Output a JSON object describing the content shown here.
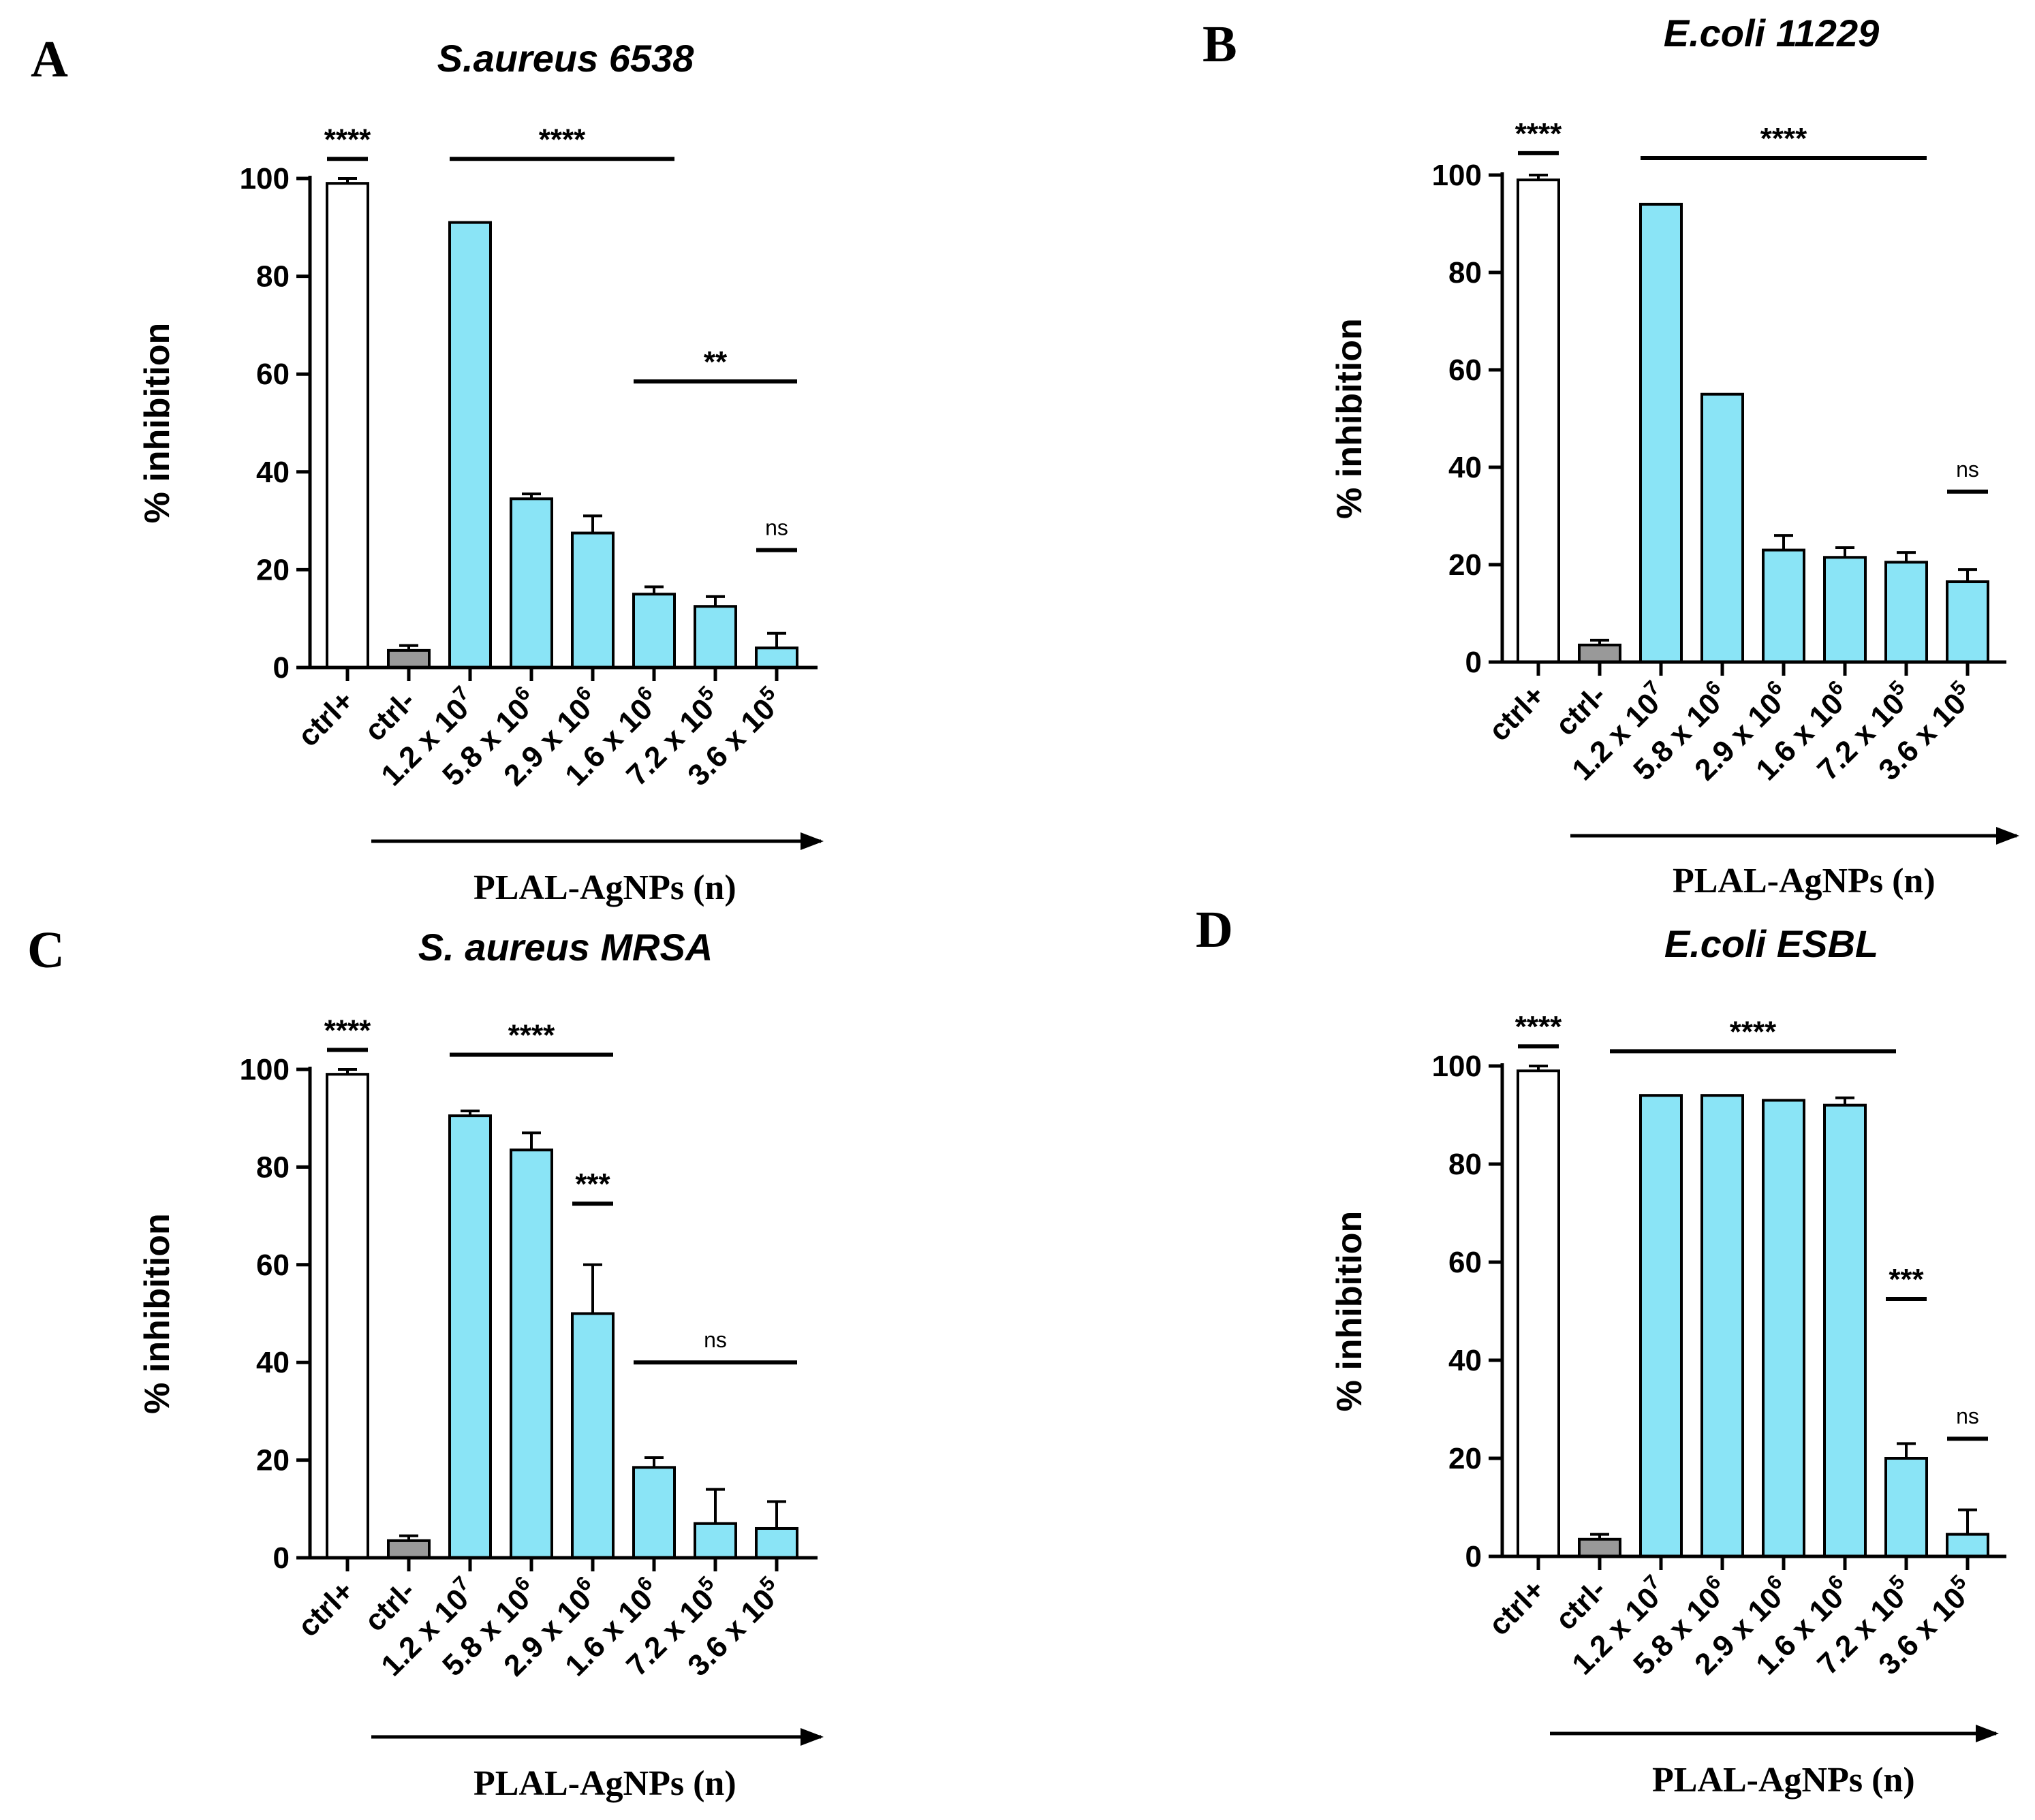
{
  "chart_data": [
    {
      "type": "bar",
      "panel": "A",
      "title": "S.aureus 6538",
      "ylabel": "% inhibition",
      "xlabel": "PLAL-AgNPs (n)",
      "ylim": [
        0,
        100
      ],
      "yticks": [
        "0",
        "20",
        "40",
        "60",
        "80",
        "100"
      ],
      "categories": [
        {
          "base": "ctrl+",
          "exp": ""
        },
        {
          "base": "ctrl-",
          "exp": ""
        },
        {
          "base": "1.2 x 10",
          "exp": "7"
        },
        {
          "base": "5.8 x 10",
          "exp": "6"
        },
        {
          "base": "2.9 x 10",
          "exp": "6"
        },
        {
          "base": "1.6 x 10",
          "exp": "6"
        },
        {
          "base": "7.2 x 10",
          "exp": "5"
        },
        {
          "base": "3.6 x 10",
          "exp": "5"
        }
      ],
      "values": [
        99,
        3.5,
        91,
        34.5,
        27.5,
        15,
        12.5,
        4
      ],
      "errors": [
        1,
        1,
        0,
        1,
        3.5,
        1.5,
        2,
        3
      ],
      "colors": [
        "#ffffff",
        "#999999",
        "#8ae4f6",
        "#8ae4f6",
        "#8ae4f6",
        "#8ae4f6",
        "#8ae4f6",
        "#8ae4f6"
      ],
      "significance": [
        {
          "label": "****",
          "from": 0,
          "to": 0,
          "y": 104
        },
        {
          "label": "****",
          "from": 2,
          "to": 5,
          "y": 104
        },
        {
          "label": "**",
          "from": 5,
          "to": 7,
          "y": 58.5
        },
        {
          "label": "ns",
          "from": 7,
          "to": 7,
          "y": 24
        }
      ]
    },
    {
      "type": "bar",
      "panel": "B",
      "title": "E.coli 11229",
      "ylabel": "% inhibition",
      "xlabel": "PLAL-AgNPs (n)",
      "ylim": [
        0,
        100
      ],
      "yticks": [
        "0",
        "20",
        "40",
        "60",
        "80",
        "100"
      ],
      "categories": [
        {
          "base": "ctrl+",
          "exp": ""
        },
        {
          "base": "ctrl-",
          "exp": ""
        },
        {
          "base": "1.2 x 10",
          "exp": "7"
        },
        {
          "base": "5.8 x 10",
          "exp": "6"
        },
        {
          "base": "2.9 x 10",
          "exp": "6"
        },
        {
          "base": "1.6 x 10",
          "exp": "6"
        },
        {
          "base": "7.2 x 10",
          "exp": "5"
        },
        {
          "base": "3.6 x 10",
          "exp": "5"
        }
      ],
      "values": [
        99,
        3.5,
        94,
        55,
        23,
        21.5,
        20.5,
        16.5
      ],
      "errors": [
        1,
        1,
        0,
        0,
        3,
        2,
        2,
        2.5
      ],
      "colors": [
        "#ffffff",
        "#999999",
        "#8ae4f6",
        "#8ae4f6",
        "#8ae4f6",
        "#8ae4f6",
        "#8ae4f6",
        "#8ae4f6"
      ],
      "significance": [
        {
          "label": "****",
          "from": 0,
          "to": 0,
          "y": 104.5
        },
        {
          "label": "****",
          "from": 2,
          "to": 6,
          "y": 103.5
        },
        {
          "label": "ns",
          "from": 7,
          "to": 7,
          "y": 35
        }
      ]
    },
    {
      "type": "bar",
      "panel": "C",
      "title": "S. aureus MRSA",
      "ylabel": "% inhibition",
      "xlabel": "PLAL-AgNPs (n)",
      "ylim": [
        0,
        100
      ],
      "yticks": [
        "0",
        "20",
        "40",
        "60",
        "80",
        "100"
      ],
      "categories": [
        {
          "base": "ctrl+",
          "exp": ""
        },
        {
          "base": "ctrl-",
          "exp": ""
        },
        {
          "base": "1.2 x 10",
          "exp": "7"
        },
        {
          "base": "5.8 x 10",
          "exp": "6"
        },
        {
          "base": "2.9 x 10",
          "exp": "6"
        },
        {
          "base": "1.6 x 10",
          "exp": "6"
        },
        {
          "base": "7.2 x 10",
          "exp": "5"
        },
        {
          "base": "3.6 x 10",
          "exp": "5"
        }
      ],
      "values": [
        99,
        3.5,
        90.5,
        83.5,
        50,
        18.5,
        7,
        6
      ],
      "errors": [
        1,
        1,
        1,
        3.5,
        10,
        2,
        7,
        5.5
      ],
      "colors": [
        "#ffffff",
        "#999999",
        "#8ae4f6",
        "#8ae4f6",
        "#8ae4f6",
        "#8ae4f6",
        "#8ae4f6",
        "#8ae4f6"
      ],
      "significance": [
        {
          "label": "****",
          "from": 0,
          "to": 0,
          "y": 104
        },
        {
          "label": "****",
          "from": 2,
          "to": 4,
          "y": 103
        },
        {
          "label": "***",
          "from": 4,
          "to": 4,
          "y": 72.5
        },
        {
          "label": "ns",
          "from": 5,
          "to": 7,
          "y": 40
        }
      ]
    },
    {
      "type": "bar",
      "panel": "D",
      "title": "E.coli ESBL",
      "ylabel": "% inhibition",
      "xlabel": "PLAL-AgNPs (n)",
      "ylim": [
        0,
        100
      ],
      "yticks": [
        "0",
        "20",
        "40",
        "60",
        "80",
        "100"
      ],
      "categories": [
        {
          "base": "ctrl+",
          "exp": ""
        },
        {
          "base": "ctrl-",
          "exp": ""
        },
        {
          "base": "1.2 x 10",
          "exp": "7"
        },
        {
          "base": "5.8 x 10",
          "exp": "6"
        },
        {
          "base": "2.9 x 10",
          "exp": "6"
        },
        {
          "base": "1.6 x 10",
          "exp": "6"
        },
        {
          "base": "7.2 x 10",
          "exp": "5"
        },
        {
          "base": "3.6 x 10",
          "exp": "5"
        }
      ],
      "values": [
        99,
        3.5,
        94,
        94,
        93,
        92,
        20,
        4.5
      ],
      "errors": [
        1,
        1,
        0,
        0,
        0,
        1.5,
        3,
        5
      ],
      "colors": [
        "#ffffff",
        "#999999",
        "#8ae4f6",
        "#8ae4f6",
        "#8ae4f6",
        "#8ae4f6",
        "#8ae4f6",
        "#8ae4f6"
      ],
      "significance": [
        {
          "label": "****",
          "from": 0,
          "to": 0,
          "y": 104
        },
        {
          "label": "****",
          "from": 1.5,
          "to": 5.5,
          "y": 103
        },
        {
          "label": "***",
          "from": 6,
          "to": 6,
          "y": 52.5
        },
        {
          "label": "ns",
          "from": 7,
          "to": 7,
          "y": 24
        }
      ]
    }
  ]
}
